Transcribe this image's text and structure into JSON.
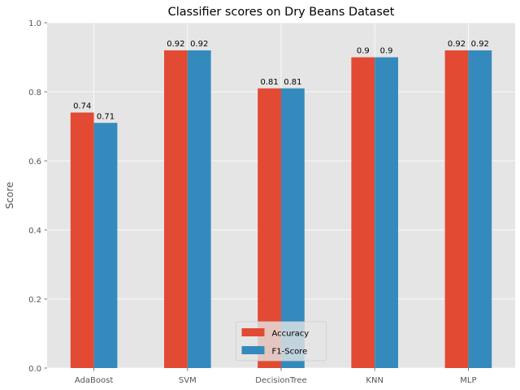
{
  "chart_data": {
    "type": "bar",
    "title": "Classifier scores on Dry Beans Dataset",
    "xlabel": "",
    "ylabel": "Score",
    "ylim": [
      0,
      1.0
    ],
    "yticks": [
      "0.0",
      "0.2",
      "0.4",
      "0.6",
      "0.8",
      "1.0"
    ],
    "categories": [
      "AdaBoost",
      "SVM",
      "DecisionTree",
      "KNN",
      "MLP"
    ],
    "series": [
      {
        "name": "Accuracy",
        "color": "#E24A33",
        "values": [
          0.74,
          0.92,
          0.81,
          0.9,
          0.92
        ]
      },
      {
        "name": "F1-Score",
        "color": "#348ABD",
        "values": [
          0.71,
          0.92,
          0.81,
          0.9,
          0.92
        ]
      }
    ],
    "grid": true,
    "legend_position": "bottom-center",
    "colors": {
      "plot_background": "#E5E5E5",
      "grid": "#FFFFFF",
      "text": "#555555",
      "label_text": "#000000"
    }
  }
}
